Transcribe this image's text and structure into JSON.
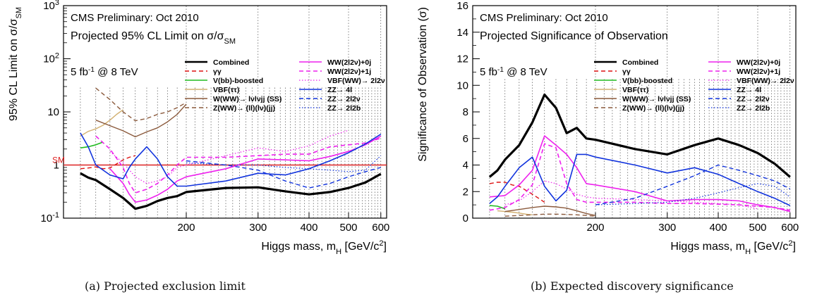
{
  "captions": {
    "a": "(a) Projected exclusion limit",
    "b": "(b) Expected discovery significance"
  },
  "chart_data": [
    {
      "type": "line",
      "header": "CMS Preliminary: Oct 2010",
      "title_prefix": "Projected 95% CL Limit on ",
      "title_sigma": "σ/σ",
      "title_sub": "SM",
      "lumi": "5 fb",
      "lumi_sup": "-1",
      "lumi_suffix": " @ 8 TeV",
      "ylabel": "95% CL Limit on σ/σ",
      "ylabel_sub": "SM",
      "xlabel": "Higgs mass, m",
      "xlabel_sub": "H",
      "xlabel_unit": " [GeV/c",
      "xlabel_unit_sup": "2",
      "xlabel_close": "]",
      "xscale": "log",
      "yscale": "log",
      "xlim": [
        100,
        620
      ],
      "ylim": [
        0.1,
        1000
      ],
      "xticks": [
        200,
        300,
        400,
        500,
        600
      ],
      "yticks": [
        {
          "v": 0.1,
          "base": "10",
          "sup": "-1"
        },
        {
          "v": 1,
          "base": "1",
          "sup": ""
        },
        {
          "v": 10,
          "base": "10",
          "sup": ""
        },
        {
          "v": 100,
          "base": "10",
          "sup": "2"
        },
        {
          "v": 1000,
          "base": "10",
          "sup": "3"
        }
      ],
      "sm_line": {
        "label": "SM",
        "y": 1,
        "color": "#dd2222"
      },
      "grid": "dotted vertical",
      "legend": "top-right",
      "series": [
        {
          "name": "Combined",
          "color": "#000000",
          "width": 3.2,
          "dash": "",
          "x": [
            110,
            115,
            120,
            130,
            140,
            145,
            150,
            160,
            170,
            180,
            190,
            200,
            250,
            300,
            350,
            400,
            450,
            500,
            550,
            600
          ],
          "y": [
            0.7,
            0.58,
            0.52,
            0.35,
            0.24,
            0.19,
            0.15,
            0.17,
            0.21,
            0.24,
            0.26,
            0.31,
            0.37,
            0.38,
            0.32,
            0.28,
            0.31,
            0.37,
            0.47,
            0.68
          ]
        },
        {
          "name": "γγ",
          "color": "#dd1111",
          "width": 1.4,
          "dash": "6,4",
          "x": [
            110,
            115,
            120,
            125,
            130,
            135,
            140,
            145,
            150
          ],
          "y": [
            0.85,
            0.88,
            0.92,
            0.85,
            0.88,
            1.05,
            1.25,
            1.4,
            1.5
          ]
        },
        {
          "name": "V(bb)-boosted",
          "color": "#22bb22",
          "width": 1.6,
          "dash": "",
          "x": [
            110,
            115,
            120,
            125
          ],
          "y": [
            2.1,
            2.2,
            2.4,
            2.7
          ]
        },
        {
          "name": "VBF(ττ)",
          "color": "#d2b070",
          "width": 1.4,
          "dash": "",
          "x": [
            110,
            115,
            120,
            125,
            130,
            135,
            140
          ],
          "y": [
            3.5,
            4.3,
            4.8,
            5.6,
            7.0,
            9.0,
            11.0
          ]
        },
        {
          "name": "W(WW)→ lνlνjj (SS)",
          "color": "#8b5a3c",
          "width": 1.4,
          "dash": "",
          "x": [
            120,
            130,
            140,
            150,
            160,
            170,
            180,
            190,
            200
          ],
          "y": [
            7.0,
            5.5,
            4.4,
            3.4,
            4.2,
            5.0,
            6.5,
            9.0,
            14.0
          ]
        },
        {
          "name": "Z(WW)→ (ll)(lν)(jj)",
          "color": "#8b5a3c",
          "width": 1.4,
          "dash": "6,4",
          "x": [
            120,
            130,
            140,
            150,
            160,
            170,
            180,
            190,
            200
          ],
          "y": [
            28,
            17,
            10,
            6.8,
            7.5,
            9.0,
            10,
            12,
            15
          ]
        },
        {
          "name": "WW(2l2ν)+0j",
          "color": "#ee22ee",
          "width": 1.6,
          "dash": "",
          "x": [
            130,
            140,
            145,
            150,
            160,
            170,
            180,
            190,
            200,
            250,
            300,
            350,
            400,
            450,
            500,
            550,
            600
          ],
          "y": [
            0.85,
            0.45,
            0.28,
            0.2,
            0.22,
            0.27,
            0.35,
            0.5,
            0.6,
            0.85,
            1.3,
            1.25,
            1.2,
            1.45,
            1.8,
            2.4,
            3.5
          ]
        },
        {
          "name": "WW(2l2ν)+1j",
          "color": "#ee22ee",
          "width": 1.6,
          "dash": "6,4",
          "x": [
            120,
            130,
            140,
            145,
            150,
            160,
            170,
            180,
            190,
            200,
            250,
            300,
            350,
            400,
            450,
            500,
            550,
            600
          ],
          "y": [
            3.5,
            2.0,
            0.9,
            0.45,
            0.3,
            0.35,
            0.45,
            0.65,
            1.0,
            1.4,
            1.4,
            1.5,
            1.6,
            1.6,
            2.2,
            2.4,
            2.6,
            3.2
          ]
        },
        {
          "name": "VBF(WW)→ 2l2ν",
          "color": "#ee22ee",
          "width": 1.2,
          "dash": "1.5,2.5",
          "x": [
            130,
            140,
            150,
            160,
            170,
            180,
            190,
            200,
            250,
            300,
            350,
            400,
            450,
            500
          ],
          "y": [
            1.8,
            1.1,
            0.6,
            0.45,
            0.5,
            0.6,
            0.9,
            1.0,
            1.5,
            2.1,
            1.8,
            2.3,
            3.5,
            4.5
          ]
        },
        {
          "name": "ZZ→ 4l",
          "color": "#1133dd",
          "width": 1.6,
          "dash": "",
          "x": [
            110,
            115,
            120,
            130,
            140,
            145,
            150,
            160,
            170,
            180,
            190,
            200,
            250,
            300,
            350,
            400,
            450,
            500,
            550,
            600
          ],
          "y": [
            4.0,
            2.2,
            1.0,
            0.65,
            0.55,
            0.9,
            1.3,
            2.2,
            1.3,
            0.6,
            0.4,
            0.4,
            0.5,
            0.7,
            0.65,
            0.85,
            1.2,
            1.7,
            2.5,
            3.8
          ]
        },
        {
          "name": "ZZ→ 2l2ν",
          "color": "#1133dd",
          "width": 1.4,
          "dash": "6,4",
          "x": [
            200,
            250,
            300,
            350,
            400,
            450,
            500,
            550,
            600
          ],
          "y": [
            1.2,
            1.0,
            0.8,
            0.5,
            0.37,
            0.45,
            0.6,
            0.75,
            0.9
          ]
        },
        {
          "name": "ZZ→ 2l2b",
          "color": "#1133dd",
          "width": 1.2,
          "dash": "1.5,2.5",
          "x": [
            200,
            250,
            300,
            350,
            400,
            450,
            500,
            550,
            600
          ],
          "y": [
            1.1,
            1.0,
            1.0,
            0.9,
            0.85,
            0.8,
            0.75,
            0.8,
            1.5
          ]
        }
      ]
    },
    {
      "type": "line",
      "header": "CMS Preliminary: Oct 2010",
      "title_prefix": "Projected Significance of Observation",
      "title_sigma": "",
      "title_sub": "",
      "lumi": "5 fb",
      "lumi_sup": "-1",
      "lumi_suffix": " @ 8 TeV",
      "ylabel": "Significance of Observation (σ)",
      "ylabel_sub": "",
      "xlabel": "Higgs mass, m",
      "xlabel_sub": "H",
      "xlabel_unit": " [GeV/c",
      "xlabel_unit_sup": "2",
      "xlabel_close": "]",
      "xscale": "log",
      "yscale": "linear",
      "xlim": [
        100,
        620
      ],
      "ylim": [
        0,
        16
      ],
      "xticks": [
        200,
        300,
        400,
        500,
        600
      ],
      "yticks": [
        {
          "v": 0,
          "base": "0",
          "sup": ""
        },
        {
          "v": 2,
          "base": "2",
          "sup": ""
        },
        {
          "v": 4,
          "base": "4",
          "sup": ""
        },
        {
          "v": 6,
          "base": "6",
          "sup": ""
        },
        {
          "v": 8,
          "base": "8",
          "sup": ""
        },
        {
          "v": 10,
          "base": "10",
          "sup": ""
        },
        {
          "v": 12,
          "base": "12",
          "sup": ""
        },
        {
          "v": 14,
          "base": "14",
          "sup": ""
        },
        {
          "v": 16,
          "base": "16",
          "sup": ""
        }
      ],
      "grid": "dotted vertical",
      "legend": "top-right",
      "series": [
        {
          "name": "Combined",
          "color": "#000000",
          "width": 3.2,
          "dash": "",
          "x": [
            110,
            115,
            120,
            130,
            140,
            150,
            160,
            170,
            180,
            190,
            200,
            250,
            300,
            350,
            400,
            450,
            500,
            550,
            600
          ],
          "y": [
            3.1,
            3.6,
            4.4,
            5.5,
            7.2,
            9.3,
            8.3,
            6.4,
            6.8,
            6.0,
            5.9,
            5.2,
            4.8,
            5.5,
            6.0,
            5.5,
            4.9,
            4.1,
            3.1
          ]
        },
        {
          "name": "γγ",
          "color": "#dd1111",
          "width": 1.4,
          "dash": "6,4",
          "x": [
            110,
            115,
            120,
            125,
            130,
            135,
            140,
            145,
            150
          ],
          "y": [
            2.6,
            2.7,
            2.7,
            2.5,
            2.4,
            2.1,
            1.8,
            1.5,
            1.2
          ]
        },
        {
          "name": "V(bb)-boosted",
          "color": "#22bb22",
          "width": 1.6,
          "dash": "",
          "x": [
            110,
            115,
            120
          ],
          "y": [
            0.95,
            0.9,
            0.7
          ]
        },
        {
          "name": "VBF(ττ)",
          "color": "#d2b070",
          "width": 1.4,
          "dash": "",
          "x": [
            115,
            120,
            125,
            130,
            135,
            140
          ],
          "y": [
            0.55,
            0.5,
            0.45,
            0.38,
            0.3,
            0.25
          ]
        },
        {
          "name": "W(WW)→ lνlνjj (SS)",
          "color": "#8b5a3c",
          "width": 1.4,
          "dash": "",
          "x": [
            120,
            130,
            140,
            150,
            160,
            170,
            180,
            190,
            200
          ],
          "y": [
            0.5,
            0.65,
            0.8,
            0.9,
            0.85,
            0.75,
            0.55,
            0.35,
            0.2
          ]
        },
        {
          "name": "Z(WW)→ (ll)(lν)(jj)",
          "color": "#8b5a3c",
          "width": 1.4,
          "dash": "6,4",
          "x": [
            120,
            130,
            140,
            150,
            160,
            170,
            180,
            190,
            200
          ],
          "y": [
            0.15,
            0.2,
            0.25,
            0.3,
            0.3,
            0.28,
            0.25,
            0.2,
            0.15
          ]
        },
        {
          "name": "WW(2l2ν)+0j",
          "color": "#ee22ee",
          "width": 1.6,
          "dash": "",
          "x": [
            110,
            120,
            130,
            140,
            150,
            160,
            170,
            180,
            190,
            200,
            250,
            300,
            350,
            400,
            450,
            500,
            550,
            600
          ],
          "y": [
            1.6,
            1.7,
            2.5,
            3.6,
            6.2,
            5.5,
            4.8,
            3.8,
            2.6,
            2.5,
            2.0,
            1.3,
            1.4,
            1.4,
            1.3,
            1.0,
            0.8,
            0.5
          ]
        },
        {
          "name": "WW(2l2ν)+1j",
          "color": "#ee22ee",
          "width": 1.6,
          "dash": "6,4",
          "x": [
            110,
            120,
            130,
            140,
            150,
            160,
            170,
            180,
            190,
            200,
            250,
            300,
            350,
            400,
            450,
            500,
            550,
            600
          ],
          "y": [
            0.6,
            0.8,
            1.4,
            2.5,
            5.6,
            5.3,
            2.6,
            1.4,
            1.2,
            1.2,
            1.2,
            1.1,
            1.1,
            1.05,
            1.0,
            0.9,
            0.8,
            0.6
          ]
        },
        {
          "name": "VBF(WW)→ 2l2ν",
          "color": "#ee22ee",
          "width": 1.2,
          "dash": "1.5,2.5",
          "x": [
            120,
            130,
            140,
            150,
            160,
            170,
            180,
            190,
            200,
            250,
            300,
            350,
            400,
            450,
            500
          ],
          "y": [
            1.0,
            1.3,
            2.0,
            2.8,
            2.6,
            2.2,
            1.8,
            1.6,
            1.5,
            1.4,
            1.3,
            1.2,
            1.1,
            1.0,
            0.7
          ]
        },
        {
          "name": "ZZ→ 4l",
          "color": "#1133dd",
          "width": 1.6,
          "dash": "",
          "x": [
            110,
            115,
            120,
            130,
            140,
            150,
            160,
            170,
            180,
            190,
            200,
            250,
            300,
            350,
            400,
            450,
            500,
            550,
            600
          ],
          "y": [
            1.1,
            1.6,
            2.4,
            3.8,
            4.6,
            2.4,
            1.3,
            2.1,
            4.8,
            4.8,
            4.6,
            4.0,
            3.4,
            3.8,
            3.3,
            2.6,
            2.0,
            1.5,
            0.95
          ]
        },
        {
          "name": "ZZ→ 2l2ν",
          "color": "#1133dd",
          "width": 1.4,
          "dash": "6,4",
          "x": [
            200,
            250,
            300,
            350,
            400,
            450,
            500,
            550,
            600
          ],
          "y": [
            1.0,
            1.5,
            2.4,
            3.2,
            4.0,
            3.6,
            3.2,
            2.8,
            2.2
          ]
        },
        {
          "name": "ZZ→ 2l2b",
          "color": "#1133dd",
          "width": 1.2,
          "dash": "1.5,2.5",
          "x": [
            200,
            250,
            300,
            350,
            400,
            450,
            500,
            550,
            600
          ],
          "y": [
            1.0,
            1.1,
            1.2,
            1.5,
            1.9,
            2.3,
            2.6,
            2.4,
            1.6
          ]
        }
      ]
    }
  ]
}
